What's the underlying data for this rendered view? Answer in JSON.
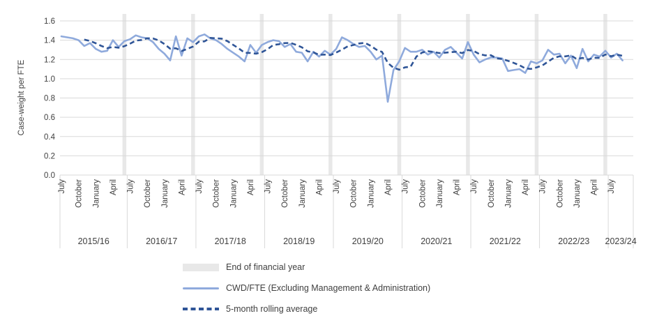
{
  "chart": {
    "legend": [
      {
        "label": "End of financial year",
        "swatch": "band",
        "color": "#E8E8E8"
      },
      {
        "label": "CWD/FTE (Excluding Management & Administration)",
        "swatch": "solid-line",
        "color": "#8FAADC"
      },
      {
        "label": "5-month rolling average",
        "swatch": "dashed-line",
        "color": "#2F5597"
      }
    ]
  },
  "chart_data": {
    "type": "line",
    "title": "",
    "y_axis": {
      "title": "Case-weight per FTE",
      "tick_labels": [
        "0.0",
        "0.2",
        "0.4",
        "0.6",
        "0.8",
        "1.0",
        "1.2",
        "1.4",
        "1.6"
      ],
      "min": 0.0,
      "max": 1.6,
      "step": 0.2
    },
    "x_axis": {
      "start": "July 2015",
      "frequency": "monthly",
      "year_groups": [
        {
          "label": "2015/16",
          "months": [
            "July",
            "October",
            "January",
            "April"
          ]
        },
        {
          "label": "2016/17",
          "months": [
            "July",
            "October",
            "January",
            "April"
          ]
        },
        {
          "label": "2017/18",
          "months": [
            "July",
            "October",
            "January",
            "April"
          ]
        },
        {
          "label": "2018/19",
          "months": [
            "July",
            "October",
            "January",
            "April"
          ]
        },
        {
          "label": "2019/20",
          "months": [
            "July",
            "October",
            "January",
            "April"
          ]
        },
        {
          "label": "2020/21",
          "months": [
            "July",
            "October",
            "January",
            "April"
          ]
        },
        {
          "label": "2021/22",
          "months": [
            "July",
            "October",
            "January",
            "April"
          ]
        },
        {
          "label": "2022/23",
          "months": [
            "July",
            "October",
            "January",
            "April"
          ]
        },
        {
          "label": "2023/24",
          "months": [
            "July"
          ]
        }
      ]
    },
    "band_color": "#E8E8E8",
    "bands_note": "grey vertical band at June (end) of each financial year",
    "gridlines": "horizontal, light grey",
    "legend_position": "bottom-left",
    "series": [
      {
        "name": "CWD/FTE (Excluding Management & Administration)",
        "color": "#8FAADC",
        "style": "solid",
        "values": [
          1.44,
          1.43,
          1.42,
          1.4,
          1.34,
          1.37,
          1.31,
          1.28,
          1.29,
          1.4,
          1.33,
          1.39,
          1.41,
          1.45,
          1.43,
          1.42,
          1.38,
          1.31,
          1.26,
          1.19,
          1.44,
          1.24,
          1.42,
          1.38,
          1.44,
          1.46,
          1.42,
          1.4,
          1.36,
          1.31,
          1.27,
          1.23,
          1.18,
          1.35,
          1.27,
          1.35,
          1.38,
          1.4,
          1.39,
          1.33,
          1.36,
          1.28,
          1.27,
          1.18,
          1.28,
          1.23,
          1.29,
          1.25,
          1.31,
          1.43,
          1.4,
          1.36,
          1.33,
          1.34,
          1.28,
          1.2,
          1.24,
          0.76,
          1.09,
          1.18,
          1.32,
          1.28,
          1.28,
          1.3,
          1.25,
          1.28,
          1.22,
          1.3,
          1.33,
          1.27,
          1.21,
          1.38,
          1.25,
          1.17,
          1.2,
          1.22,
          1.22,
          1.21,
          1.08,
          1.09,
          1.1,
          1.06,
          1.18,
          1.16,
          1.19,
          1.3,
          1.25,
          1.26,
          1.16,
          1.24,
          1.11,
          1.31,
          1.18,
          1.25,
          1.23,
          1.29,
          1.22,
          1.26,
          1.19
        ]
      },
      {
        "name": "5-month rolling average",
        "color": "#2F5597",
        "style": "dashed",
        "window": 5
      }
    ]
  }
}
